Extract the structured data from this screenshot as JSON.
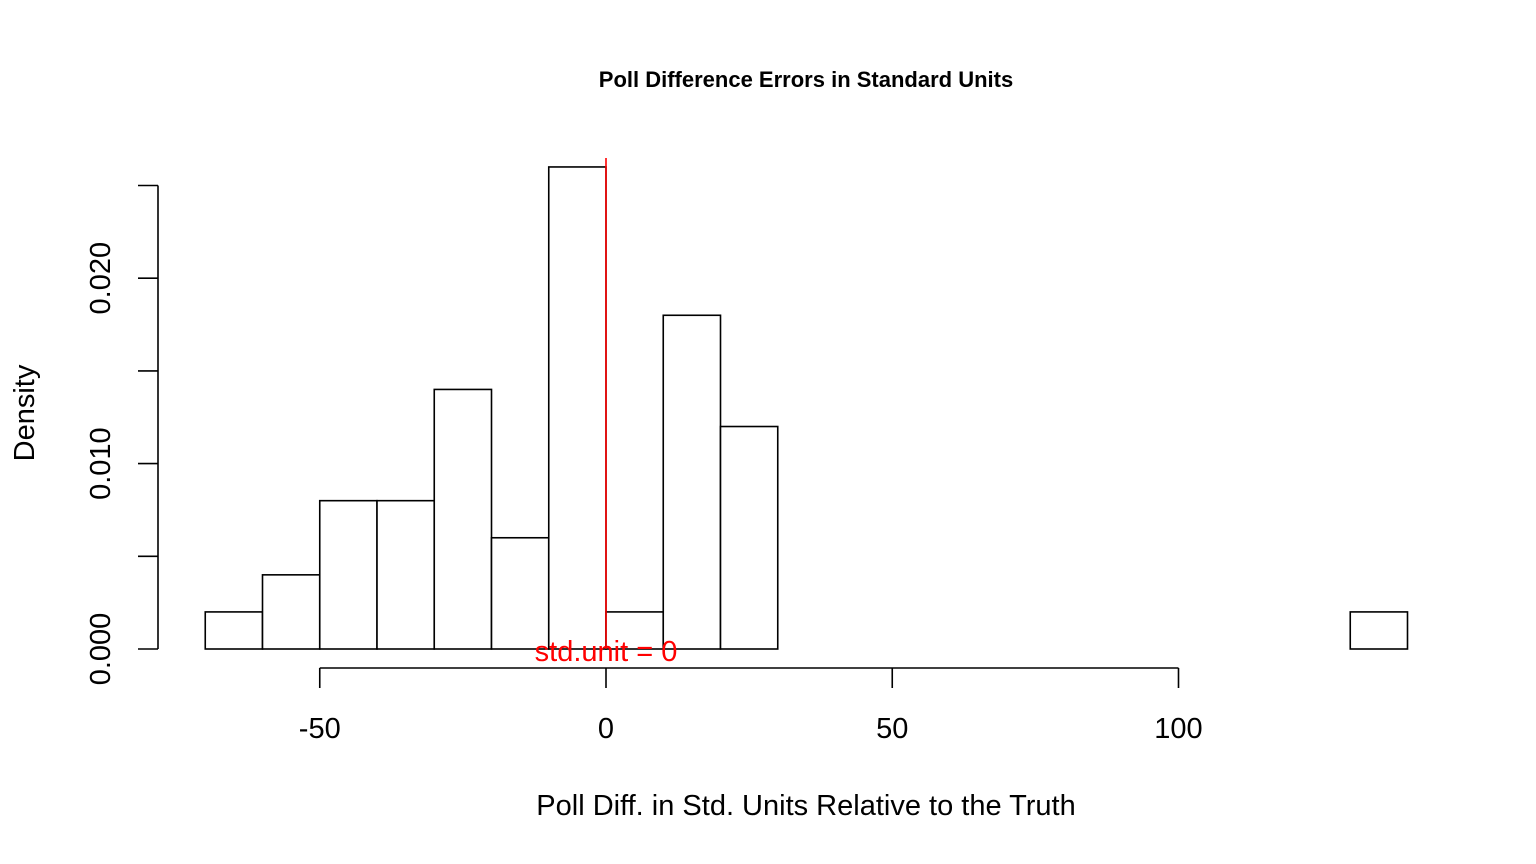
{
  "chart_data": {
    "type": "bar",
    "title": "Poll Difference Errors in Standard Units",
    "xlabel": "Poll Diff. in Std. Units Relative to the Truth",
    "ylabel": "Density",
    "bin_edges": [
      -70,
      -60,
      -50,
      -40,
      -30,
      -20,
      -10,
      0,
      10,
      20,
      30,
      40,
      50,
      60,
      70,
      80,
      90,
      100,
      110,
      120,
      130,
      140
    ],
    "values": [
      0.002,
      0.004,
      0.008,
      0.008,
      0.014,
      0.006,
      0.026,
      0.002,
      0.018,
      0.012,
      0,
      0,
      0,
      0,
      0,
      0,
      0,
      0,
      0,
      0,
      0.002
    ],
    "x_ticks": [
      -50,
      0,
      50,
      100
    ],
    "x_tick_labels": [
      "-50",
      "0",
      "50",
      "100"
    ],
    "y_ticks": [
      0,
      0.005,
      0.01,
      0.015,
      0.02,
      0.025
    ],
    "y_tick_labels": [
      "0.000",
      "",
      "0.010",
      "",
      "0.020",
      ""
    ],
    "xlim": [
      -70,
      140
    ],
    "ylim": [
      0,
      0.027
    ],
    "grid": false,
    "reference_line": {
      "x": 0,
      "label": "std.unit = 0",
      "color": "#ff0000"
    }
  }
}
